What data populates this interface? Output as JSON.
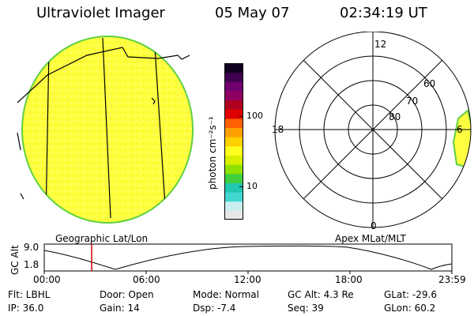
{
  "header": {
    "title": "Ultraviolet Imager",
    "date": "05 May 07",
    "time": "02:34:19 UT"
  },
  "left_panel": {
    "caption": "Geographic Lat/Lon"
  },
  "colorbar": {
    "unit_label": "photon cm⁻²s⁻¹",
    "ticks": [
      "100",
      "10"
    ],
    "colors": [
      "#e8e8e8",
      "#c8eef0",
      "#40d8d0",
      "#20c8b0",
      "#40d040",
      "#90e000",
      "#d8f000",
      "#ffff20",
      "#ffd000",
      "#ffa000",
      "#ff6000",
      "#e00000",
      "#b00020",
      "#900060",
      "#700070",
      "#400050",
      "#100020"
    ]
  },
  "right_panel": {
    "caption": "Apex MLat/MLT",
    "mlt_labels": [
      "12",
      "18",
      "0",
      "6"
    ],
    "lat_labels": [
      "60",
      "70",
      "80"
    ]
  },
  "gc_plot": {
    "ylabel": "GC Alt",
    "y_ticks": [
      "9.0",
      "1.8"
    ],
    "x_ticks": [
      "00:00",
      "06:00",
      "12:00",
      "18:00",
      "23:59"
    ],
    "marker_time": "02:34"
  },
  "status": {
    "flt": "Flt: LBHL",
    "ip": "IP: 36.0",
    "door": "Door: Open",
    "gain": "Gain: 14",
    "mode": "Mode: Normal",
    "dsp": "Dsp:   -7.4",
    "gcalt": "GC Alt: 4.3 Re",
    "seq": "Seq: 39",
    "glat": "GLat: -29.6",
    "glon": "GLon:  60.2"
  }
}
